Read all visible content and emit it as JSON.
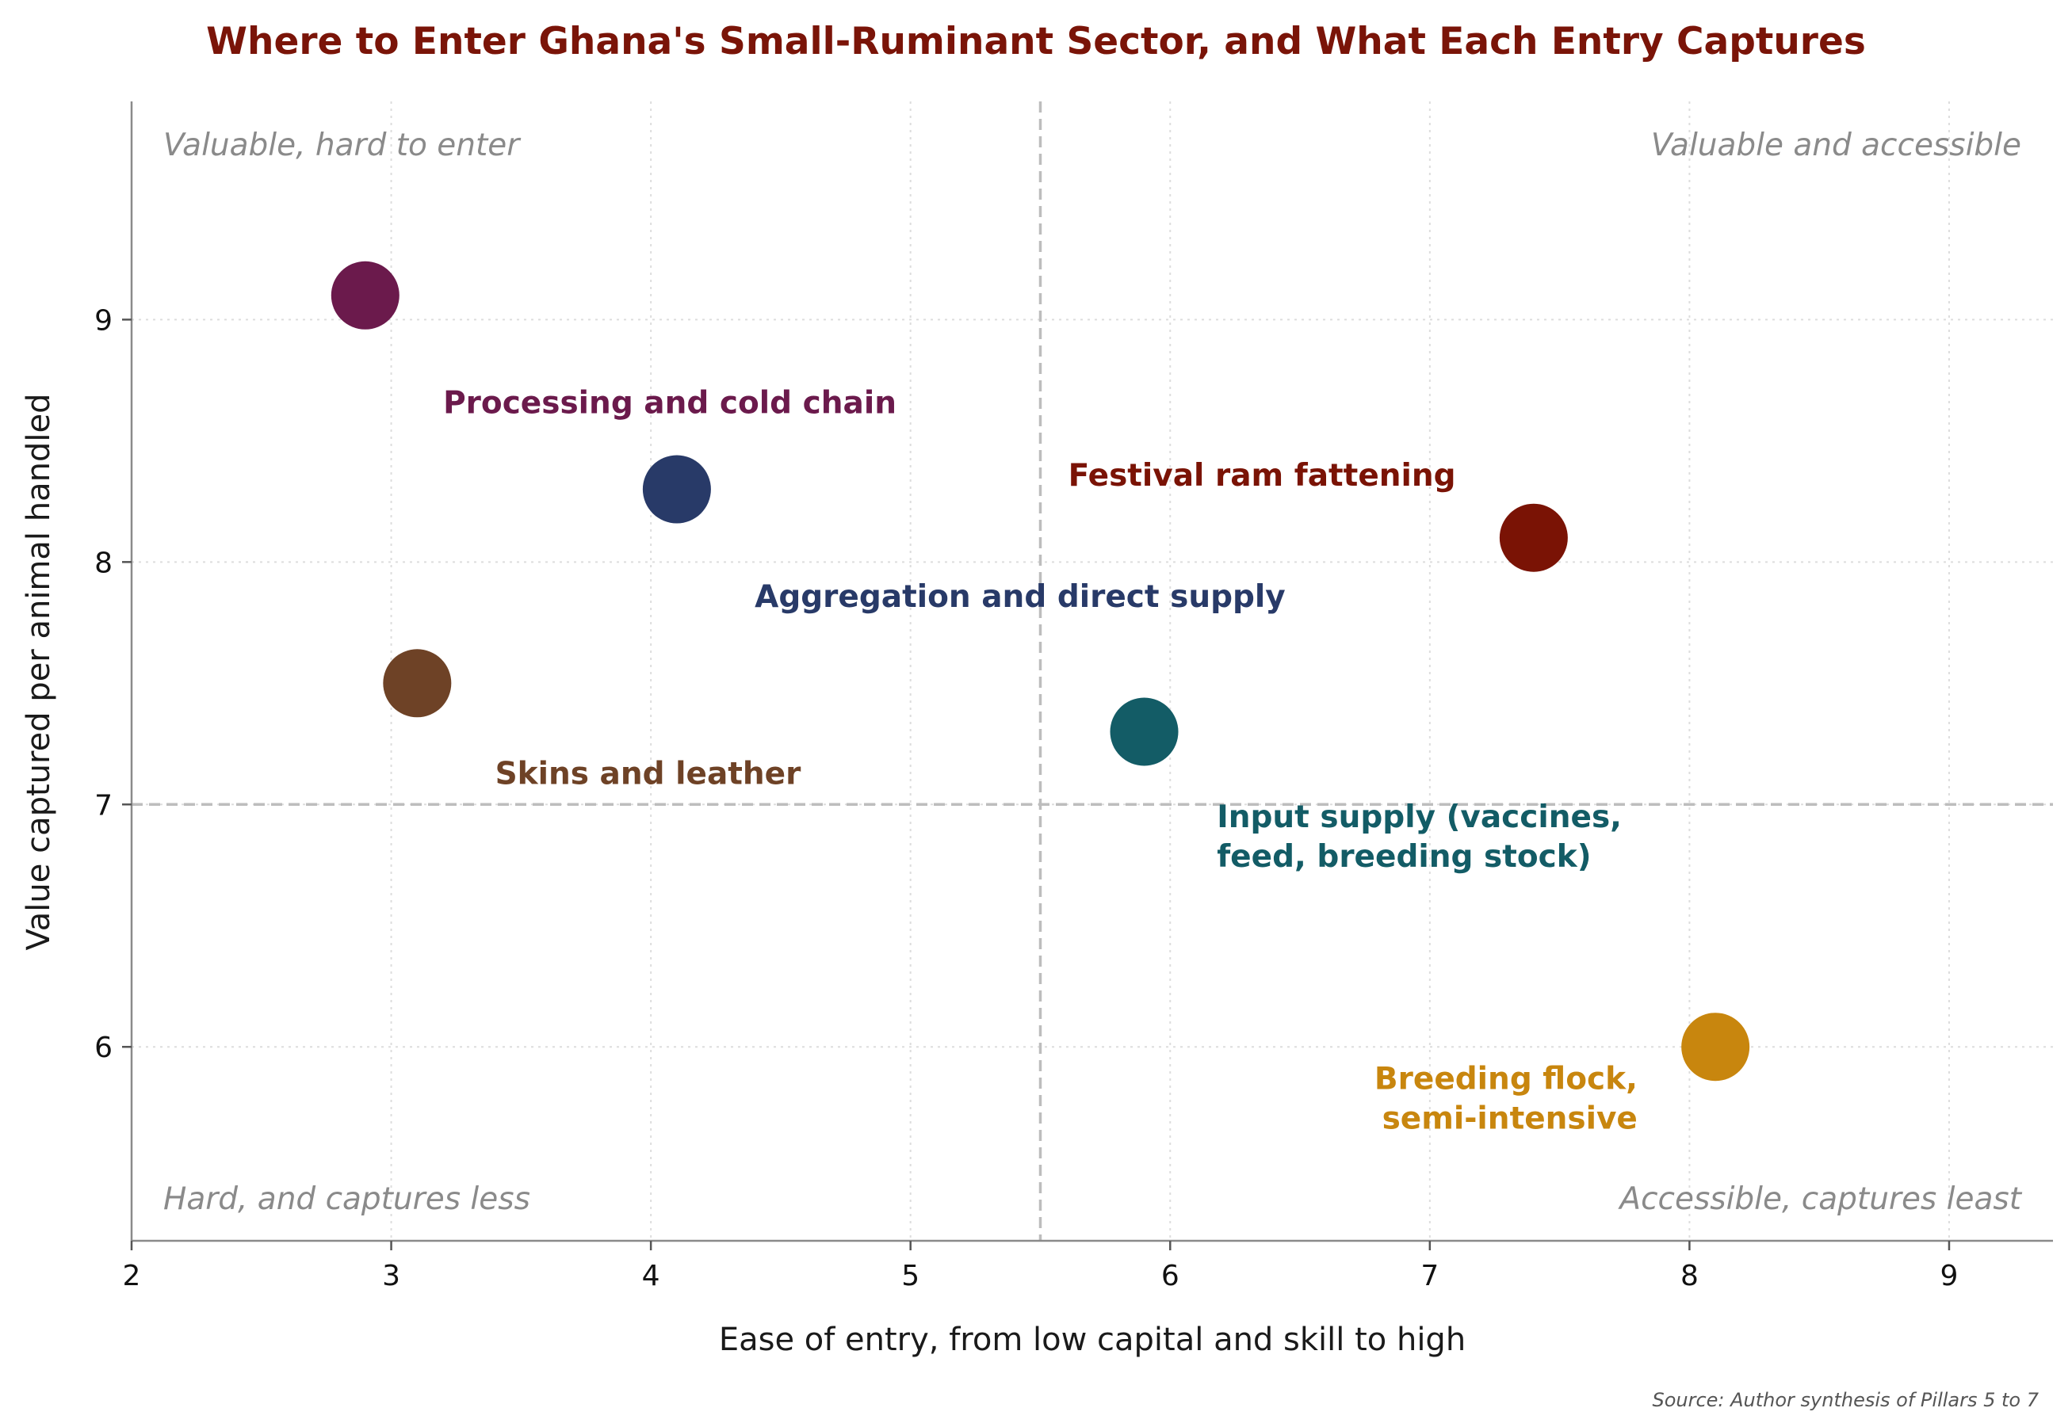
{
  "chart_data": {
    "type": "scatter",
    "title": "Where to Enter Ghana's Small-Ruminant Sector, and What Each Entry Captures",
    "xlabel": "Ease of entry, from low capital and skill to high",
    "ylabel": "Value captured per animal handled",
    "xlim": [
      2,
      9.4
    ],
    "ylim": [
      5.2,
      9.9
    ],
    "xticks": [
      2,
      3,
      4,
      5,
      6,
      7,
      8,
      9
    ],
    "yticks": [
      6,
      7,
      8,
      9
    ],
    "grid": true,
    "reference_lines": {
      "x": 5.5,
      "y": 7
    },
    "quadrant_labels": {
      "top_left": "Valuable, hard to enter",
      "top_right": "Valuable and accessible",
      "bottom_left": "Hard, and captures less",
      "bottom_right": "Accessible, captures least"
    },
    "points": [
      {
        "label": "Processing and cold chain",
        "lines": [
          "Processing and cold chain"
        ],
        "x": 2.9,
        "y": 9.1,
        "color": "#6b1a4c",
        "label_x": 3.2,
        "label_y": 8.66,
        "anchor": "start"
      },
      {
        "label": "Aggregation and direct supply",
        "lines": [
          "Aggregation and direct supply"
        ],
        "x": 4.1,
        "y": 8.3,
        "color": "#283a68",
        "label_x": 4.4,
        "label_y": 7.86,
        "anchor": "start"
      },
      {
        "label": "Festival ram fattening",
        "lines": [
          "Festival ram fattening"
        ],
        "x": 7.4,
        "y": 8.1,
        "color": "#7a1305",
        "label_x": 7.1,
        "label_y": 8.36,
        "anchor": "end"
      },
      {
        "label": "Skins and leather",
        "lines": [
          "Skins and leather"
        ],
        "x": 3.1,
        "y": 7.5,
        "color": "#6e4226",
        "label_x": 3.4,
        "label_y": 7.13,
        "anchor": "start"
      },
      {
        "label": "Input supply (vaccines, feed, breeding stock)",
        "lines": [
          "Input supply (vaccines,",
          "feed, breeding stock)"
        ],
        "x": 5.9,
        "y": 7.3,
        "color": "#135c66",
        "label_x": 6.18,
        "label_y": 6.87,
        "anchor": "start"
      },
      {
        "label": "Breeding flock, semi-intensive",
        "lines": [
          "Breeding flock,",
          "semi-intensive"
        ],
        "x": 8.1,
        "y": 6.0,
        "color": "#c8860e",
        "label_x": 7.8,
        "label_y": 5.79,
        "anchor": "end"
      }
    ],
    "source": "Source: Author synthesis of Pillars 5 to 7"
  }
}
